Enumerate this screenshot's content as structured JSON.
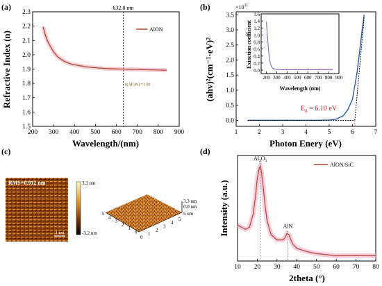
{
  "chart_data": [
    {
      "type": "line",
      "panel_label": "(a)",
      "xlabel": "Wavelength/(nm)",
      "ylabel": "Refractive Index (n)",
      "xlim": [
        200,
        900
      ],
      "ylim": [
        1.5,
        2.3
      ],
      "xticks": [
        "200",
        "300",
        "400",
        "500",
        "600",
        "700",
        "800",
        "900"
      ],
      "yticks": [
        "1.5",
        "1.6",
        "1.7",
        "1.8",
        "1.9",
        "2.0",
        "2.1",
        "2.2",
        "2.3"
      ],
      "series": [
        {
          "name": "AlON",
          "color": "#b5452a",
          "x": [
            250,
            260,
            270,
            280,
            300,
            320,
            350,
            380,
            400,
            450,
            500,
            550,
            600,
            632.8,
            650,
            700,
            750,
            800,
            840
          ],
          "y": [
            2.195,
            2.14,
            2.1,
            2.07,
            2.02,
            1.985,
            1.955,
            1.937,
            1.93,
            1.917,
            1.909,
            1.904,
            1.901,
            1.9,
            1.899,
            1.897,
            1.895,
            1.893,
            1.892
          ]
        }
      ],
      "vline": {
        "x": 632.8,
        "label": "632.8 nm"
      },
      "annotation": {
        "text": "n(AlON) =1.90",
        "x": 632.8,
        "y": 1.9
      },
      "legend": "top-right",
      "grid": false
    },
    {
      "type": "line",
      "panel_label": "(b)",
      "xlabel": "Photon Enery (eV)",
      "ylabel": "(ahv)²(cm⁻¹·eV)²",
      "y_multiplier": "×10",
      "y_multiplier_exp": "11",
      "xlim": [
        1,
        7
      ],
      "ylim": [
        -0.2,
        3.6
      ],
      "xticks": [
        "1",
        "2",
        "3",
        "4",
        "5",
        "6",
        "7"
      ],
      "yticks": [
        "0.0",
        "0.5",
        "1.0",
        "1.5",
        "2.0",
        "2.5",
        "3.0",
        "3.5"
      ],
      "series": [
        {
          "name": "",
          "color": "#2a5caa",
          "x": [
            1.5,
            2,
            2.5,
            3,
            3.5,
            4,
            4.5,
            5,
            5.3,
            5.6,
            5.8,
            6,
            6.2,
            6.4,
            6.5
          ],
          "y": [
            0,
            0,
            0,
            0,
            0,
            0,
            0,
            0.01,
            0.04,
            0.15,
            0.35,
            0.7,
            1.6,
            2.9,
            3.5
          ]
        }
      ],
      "fit_line": {
        "x": [
          6.1,
          6.5
        ],
        "y": [
          0,
          3.4
        ]
      },
      "baseline_y": 0,
      "annotation": {
        "text": "E",
        "sub": "g",
        "rest": " = 6.10 eV",
        "x": 6.1,
        "color": "#d0202a"
      },
      "inset": {
        "xlabel": "Wavelength (nm)",
        "ylabel": "Exinction coefficient",
        "xlim": [
          150,
          900
        ],
        "ylim": [
          -0.1,
          1.6
        ],
        "xticks": [
          "200",
          "300",
          "400",
          "500",
          "600",
          "700",
          "800",
          "900"
        ],
        "yticks": [
          "0.0",
          "0.2",
          "0.4",
          "0.6",
          "0.8",
          "1.0",
          "1.2",
          "1.4",
          "1.6"
        ],
        "color": "#8a6fc0",
        "x": [
          200,
          210,
          220,
          230,
          240,
          250,
          260,
          270,
          280,
          300,
          350,
          400,
          500,
          600,
          700,
          840
        ],
        "y": [
          1.38,
          1.0,
          0.6,
          0.32,
          0.18,
          0.1,
          0.06,
          0.04,
          0.03,
          0.02,
          0.01,
          0.01,
          0.01,
          0.01,
          0.01,
          0.01
        ]
      }
    },
    {
      "type": "heatmap",
      "panel_label": "(c)",
      "rms_label": "RMS=0.912 nm",
      "scalebar_label": "1 nm",
      "colorbar": [
        "3.3 nm",
        "-3.2 nm"
      ],
      "surface_labels": [
        "3.3 nm",
        "0.0 nm",
        "5 um"
      ],
      "x_ticks": [
        "5",
        "4",
        "3",
        "2",
        "1",
        "0"
      ],
      "y_ticks": [
        "0",
        "1",
        "2",
        "3",
        "4",
        "5"
      ]
    },
    {
      "type": "line",
      "panel_label": "(d)",
      "xlabel": "2theta (°)",
      "ylabel": "Intensity (a.u.)",
      "xlim": [
        10,
        80
      ],
      "xticks": [
        "10",
        "20",
        "30",
        "40",
        "50",
        "60",
        "70",
        "80"
      ],
      "series": [
        {
          "name": "AlON/SiC",
          "color": "#b5452a",
          "x": [
            10,
            12,
            14,
            16,
            18,
            19,
            20,
            21,
            21.5,
            22,
            23,
            24,
            25,
            27,
            30,
            33,
            34,
            35,
            36,
            37,
            38,
            40,
            45,
            50,
            55,
            60,
            65,
            70,
            75,
            80
          ],
          "y": [
            0.34,
            0.32,
            0.3,
            0.32,
            0.45,
            0.6,
            0.78,
            0.88,
            0.9,
            0.86,
            0.7,
            0.52,
            0.38,
            0.25,
            0.2,
            0.2,
            0.22,
            0.26,
            0.25,
            0.2,
            0.16,
            0.12,
            0.09,
            0.07,
            0.06,
            0.05,
            0.05,
            0.05,
            0.05,
            0.05
          ]
        }
      ],
      "peaks": [
        {
          "label": "Al",
          "sub1": "2",
          "mid": "O",
          "sub2": "3",
          "x": 21.5
        },
        {
          "label": "AlN",
          "x": 35.5
        }
      ],
      "legend": "top-right"
    }
  ]
}
